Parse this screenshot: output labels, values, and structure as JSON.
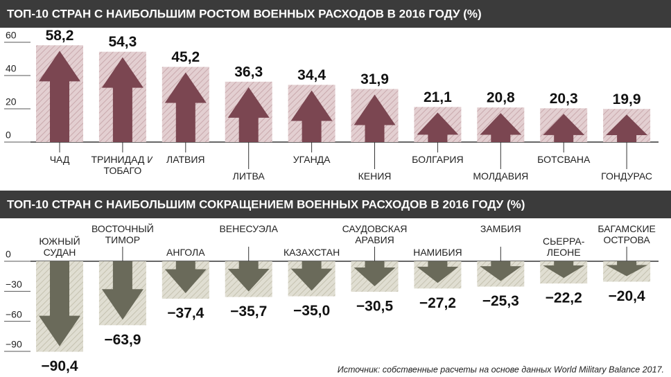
{
  "chart_data": [
    {
      "type": "bar",
      "title": "ТОП-10 СТРАН С НАИБОЛЬШИМ РОСТОМ ВОЕННЫХ РАСХОДОВ В 2016 ГОДУ (%)",
      "categories": [
        "ЧАД",
        "ТРИНИДАД И ТОБАГО",
        "ЛАТВИЯ",
        "ЛИТВА",
        "УГАНДА",
        "КЕНИЯ",
        "БОЛГАРИЯ",
        "МОЛДАВИЯ",
        "БОТСВАНА",
        "ГОНДУРАС"
      ],
      "values": [
        58.2,
        54.3,
        45.2,
        36.3,
        34.4,
        31.9,
        21.1,
        20.8,
        20.3,
        19.9
      ],
      "value_labels": [
        "58,2",
        "54,3",
        "45,2",
        "36,3",
        "34,4",
        "31,9",
        "21,1",
        "20,8",
        "20,3",
        "19,9"
      ],
      "color": "#7b4651",
      "ylim": [
        0,
        60
      ],
      "yticks": [
        0,
        20,
        40,
        60
      ]
    },
    {
      "type": "bar",
      "title": "ТОП-10 СТРАН С НАИБОЛЬШИМ СОКРАЩЕНИЕМ ВОЕННЫХ РАСХОДОВ В 2016 ГОДУ  (%)",
      "categories": [
        "ЮЖНЫЙ СУДАН",
        "ВОСТОЧНЫЙ ТИМОР",
        "АНГОЛА",
        "ВЕНЕСУЭЛА",
        "КАЗАХСТАН",
        "САУДОВСКАЯ АРАВИЯ",
        "НАМИБИЯ",
        "ЗАМБИЯ",
        "СЬЕРРА-ЛЕОНЕ",
        "БАГАМСКИЕ ОСТРОВА"
      ],
      "values": [
        -90.4,
        -63.9,
        -37.4,
        -35.7,
        -35.0,
        -30.5,
        -27.2,
        -25.3,
        -22.2,
        -20.4
      ],
      "value_labels": [
        "−90,4",
        "−63,9",
        "−37,4",
        "−35,7",
        "−35,0",
        "−30,5",
        "−27,2",
        "−25,3",
        "−22,2",
        "−20,4"
      ],
      "color": "#6a6a5a",
      "ylim": [
        -90,
        0
      ],
      "yticks": [
        {
          "value": -90,
          "label": "−90"
        },
        {
          "value": -60,
          "label": "−60"
        },
        {
          "value": -30,
          "label": "−30"
        },
        0
      ]
    }
  ],
  "source": "Источник: собственные расчеты на основе данных World Military Balance 2017."
}
